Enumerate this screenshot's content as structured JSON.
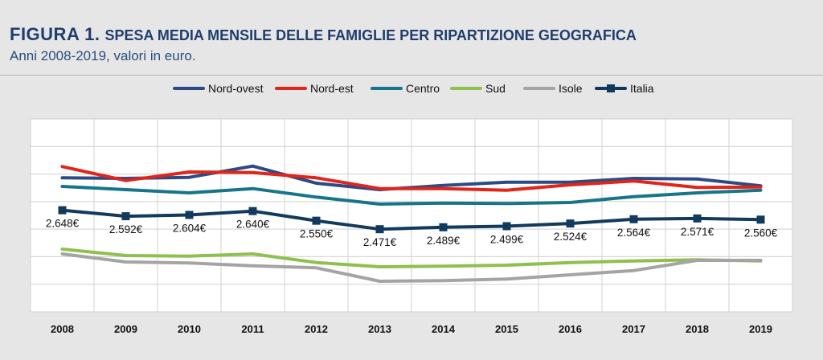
{
  "header": {
    "figure_label": "FIGURA 1.",
    "title": "SPESA MEDIA MENSILE DELLE FAMIGLIE PER RIPARTIZIONE GEOGRAFICA",
    "subtitle": "Anni 2008-2019, valori in euro."
  },
  "chart_data": {
    "type": "line",
    "title": "SPESA MEDIA MENSILE DELLE FAMIGLIE PER RIPARTIZIONE GEOGRAFICA",
    "subtitle": "Anni 2008-2019, valori in euro.",
    "x": [
      "2008",
      "2009",
      "2010",
      "2011",
      "2012",
      "2013",
      "2014",
      "2015",
      "2016",
      "2017",
      "2018",
      "2019"
    ],
    "ylim": [
      1700,
      3500
    ],
    "grid": true,
    "legend_position": "top",
    "series": [
      {
        "name": "Nord-ovest",
        "color": "#2e4a85",
        "values": [
          2950,
          2945,
          2955,
          3060,
          2900,
          2840,
          2880,
          2910,
          2910,
          2945,
          2940,
          2875
        ]
      },
      {
        "name": "Nord-est",
        "color": "#e0251b",
        "values": [
          3055,
          2925,
          3005,
          3000,
          2950,
          2850,
          2850,
          2835,
          2885,
          2920,
          2860,
          2865
        ]
      },
      {
        "name": "Centro",
        "color": "#17758a",
        "values": [
          2870,
          2840,
          2810,
          2850,
          2770,
          2705,
          2715,
          2710,
          2720,
          2775,
          2810,
          2835
        ]
      },
      {
        "name": "Sud",
        "color": "#8fc04f",
        "values": [
          2285,
          2225,
          2220,
          2240,
          2160,
          2120,
          2125,
          2135,
          2160,
          2175,
          2185,
          2175
        ]
      },
      {
        "name": "Isole",
        "color": "#a4a4a4",
        "values": [
          2240,
          2165,
          2155,
          2130,
          2110,
          1985,
          1990,
          2005,
          2045,
          2085,
          2180,
          2180
        ]
      },
      {
        "name": "Italia",
        "color": "#123a5c",
        "marker": "square",
        "values": [
          2648,
          2592,
          2604,
          2640,
          2550,
          2471,
          2489,
          2499,
          2524,
          2564,
          2571,
          2560
        ],
        "labels": [
          "2.648€",
          "2.592€",
          "2.604€",
          "2.640€",
          "2.550€",
          "2.471€",
          "2.489€",
          "2.499€",
          "2.524€",
          "2.564€",
          "2.571€",
          "2.560€"
        ]
      }
    ]
  }
}
